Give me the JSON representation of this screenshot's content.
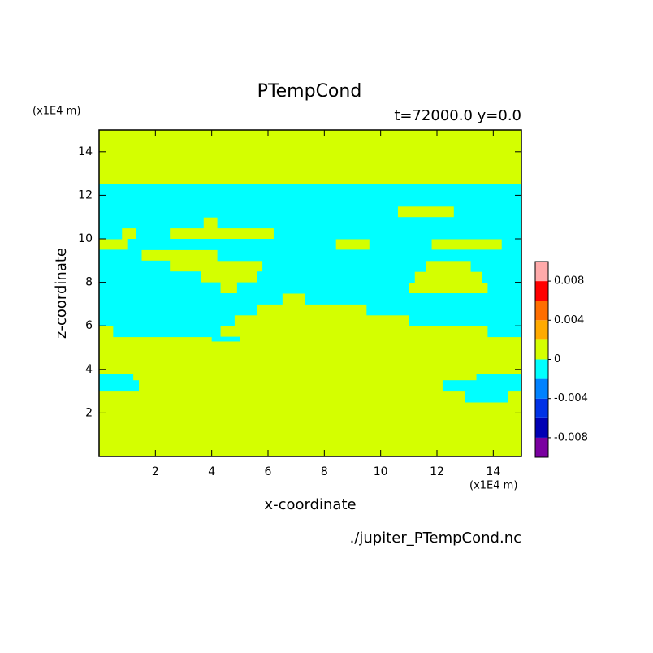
{
  "chart_data": {
    "type": "contour",
    "title": "PTempCond",
    "subtitle": "t=72000.0 y=0.0",
    "x_label": "x-coordinate",
    "y_label": "z-coordinate",
    "x_unit": "(x1E4 m)",
    "y_unit": "(x1E4 m)",
    "source": "./jupiter_PTempCond.nc",
    "xlim": [
      0,
      15
    ],
    "ylim": [
      0,
      15
    ],
    "xticks": [
      2,
      4,
      6,
      8,
      10,
      12,
      14
    ],
    "yticks": [
      2,
      4,
      6,
      8,
      10,
      12,
      14
    ],
    "levels": [
      -0.01,
      -0.008,
      -0.006,
      -0.004,
      -0.002,
      0,
      0.002,
      0.004,
      0.006,
      0.008,
      0.01
    ],
    "level_colors": [
      "#7a00a0",
      "#0000b4",
      "#0032e6",
      "#0082ff",
      "#00ffff",
      "#d4ff00",
      "#ffaa00",
      "#ff6e00",
      "#ff0000",
      "#ffaaaa"
    ],
    "colorbar_ticks": [
      -0.008,
      -0.004,
      0,
      0.004,
      0.008
    ],
    "background_value": 0,
    "band_value": -0.001,
    "bands": [
      {
        "z": [
          12.0,
          12.5
        ],
        "x": [
          [
            0,
            15
          ]
        ]
      },
      {
        "z": [
          11.5,
          12.0
        ],
        "x": [
          [
            0,
            15
          ]
        ]
      },
      {
        "z": [
          11.0,
          11.5
        ],
        "x": [
          [
            0,
            10.6
          ],
          [
            12.6,
            15
          ]
        ]
      },
      {
        "z": [
          10.5,
          11.0
        ],
        "x": [
          [
            0,
            3.7
          ],
          [
            4.2,
            15
          ]
        ]
      },
      {
        "z": [
          10.0,
          10.5
        ],
        "x": [
          [
            0,
            0.8
          ],
          [
            1.3,
            2.5
          ],
          [
            6.2,
            15
          ]
        ]
      },
      {
        "z": [
          9.5,
          10.0
        ],
        "x": [
          [
            1,
            8.4
          ],
          [
            9.6,
            11.8
          ],
          [
            14.3,
            15
          ]
        ]
      },
      {
        "z": [
          9.0,
          9.5
        ],
        "x": [
          [
            0,
            1.5
          ],
          [
            4.2,
            15
          ]
        ]
      },
      {
        "z": [
          8.5,
          9.0
        ],
        "x": [
          [
            0,
            2.5
          ],
          [
            5.8,
            11.6
          ],
          [
            13.2,
            15
          ]
        ]
      },
      {
        "z": [
          8.0,
          8.5
        ],
        "x": [
          [
            0,
            3.6
          ],
          [
            5.6,
            11.2
          ],
          [
            13.6,
            15
          ]
        ]
      },
      {
        "z": [
          7.5,
          8.0
        ],
        "x": [
          [
            0,
            4.3
          ],
          [
            4.9,
            11
          ],
          [
            13.8,
            15
          ]
        ]
      },
      {
        "z": [
          7.0,
          7.5
        ],
        "x": [
          [
            0,
            6.5
          ],
          [
            7.3,
            15
          ]
        ]
      },
      {
        "z": [
          6.5,
          7.0
        ],
        "x": [
          [
            0,
            5.6
          ],
          [
            9.5,
            15
          ]
        ]
      },
      {
        "z": [
          6.0,
          6.5
        ],
        "x": [
          [
            0,
            4.8
          ],
          [
            11,
            15
          ]
        ]
      },
      {
        "z": [
          5.5,
          6.0
        ],
        "x": [
          [
            0.5,
            4.3
          ],
          [
            13.8,
            15
          ]
        ]
      },
      {
        "z": [
          5.3,
          5.5
        ],
        "x": [
          [
            4,
            5
          ]
        ]
      },
      {
        "z": [
          3.5,
          3.8
        ],
        "x": [
          [
            0,
            1.2
          ],
          [
            13.4,
            15
          ]
        ]
      },
      {
        "z": [
          3.0,
          3.5
        ],
        "x": [
          [
            0,
            1.4
          ],
          [
            12.2,
            15
          ]
        ]
      },
      {
        "z": [
          2.5,
          3.0
        ],
        "x": [
          [
            13,
            14.5
          ]
        ]
      }
    ]
  }
}
